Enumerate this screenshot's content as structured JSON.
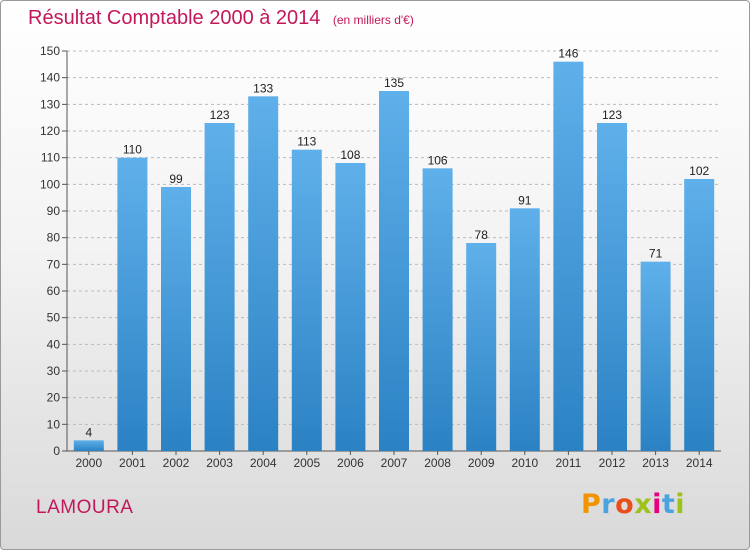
{
  "header": {
    "title": "Résultat Comptable 2000 à 2014",
    "subtitle": "(en milliers d'€)"
  },
  "footer": {
    "place": "LAMOURA",
    "logo": "Proxiti",
    "logo_colors": [
      "#f29400",
      "#4aa3df",
      "#e94e1b",
      "#9dc21b",
      "#e6007e",
      "#4aa3df",
      "#9dc21b"
    ]
  },
  "colors": {
    "title": "#c2185b",
    "bar_top": "#5fb0ea",
    "bar_bottom": "#2b82c3",
    "grid": "#bbbbbb"
  },
  "chart_data": {
    "type": "bar",
    "title": "Résultat Comptable 2000 à 2014",
    "subtitle": "(en milliers d'€)",
    "categories": [
      "2000",
      "2001",
      "2002",
      "2003",
      "2004",
      "2005",
      "2006",
      "2007",
      "2008",
      "2009",
      "2010",
      "2011",
      "2012",
      "2013",
      "2014"
    ],
    "values": [
      4,
      110,
      99,
      123,
      133,
      113,
      108,
      135,
      106,
      78,
      91,
      146,
      123,
      71,
      102
    ],
    "yticks": [
      0,
      10,
      20,
      30,
      40,
      50,
      60,
      70,
      80,
      90,
      100,
      110,
      120,
      130,
      140,
      150
    ],
    "ylim": [
      0,
      150
    ],
    "grid": "horizontal dashed",
    "data_labels": true
  }
}
